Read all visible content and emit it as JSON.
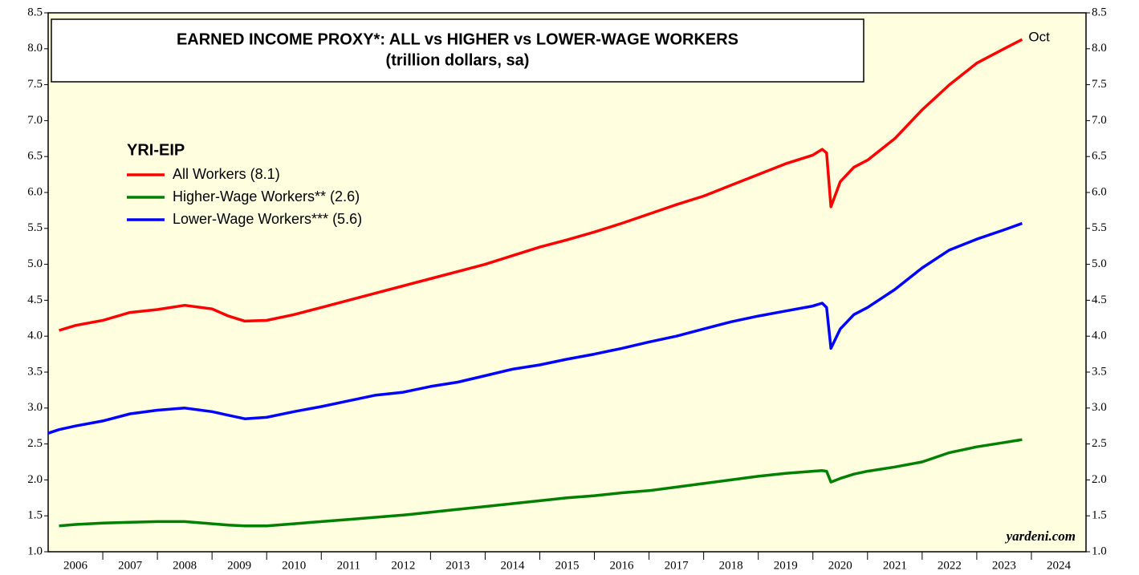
{
  "chart_data": {
    "type": "line",
    "title": "EARNED INCOME PROXY*: ALL vs HIGHER vs LOWER-WAGE WORKERS",
    "subtitle": "(trillion dollars, sa)",
    "legend_title": "YRI-EIP",
    "annotation": "Oct",
    "source": "yardeni.com",
    "x": [
      2006,
      2006.2,
      2006.5,
      2007,
      2007.5,
      2008,
      2008.5,
      2009,
      2009.3,
      2009.6,
      2010,
      2010.5,
      2011,
      2011.5,
      2012,
      2012.5,
      2013,
      2013.5,
      2014,
      2014.5,
      2015,
      2015.5,
      2016,
      2016.5,
      2017,
      2017.5,
      2018,
      2018.5,
      2019,
      2019.5,
      2020,
      2020.17,
      2020.25,
      2020.33,
      2020.5,
      2020.75,
      2021,
      2021.5,
      2022,
      2022.5,
      2023,
      2023.5,
      2023.83
    ],
    "series": [
      {
        "name": "All Workers (8.1)",
        "color": "#ff0000",
        "values": [
          null,
          4.08,
          4.15,
          4.22,
          4.33,
          4.37,
          4.43,
          4.38,
          4.28,
          4.21,
          4.22,
          4.3,
          4.4,
          4.5,
          4.6,
          4.7,
          4.8,
          4.9,
          5.0,
          5.12,
          5.24,
          5.34,
          5.45,
          5.57,
          5.7,
          5.83,
          5.95,
          6.1,
          6.25,
          6.4,
          6.52,
          6.6,
          6.55,
          5.8,
          6.15,
          6.35,
          6.45,
          6.75,
          7.15,
          7.5,
          7.8,
          8.0,
          8.13
        ]
      },
      {
        "name": "Higher-Wage Workers** (2.6)",
        "color": "#008000",
        "values": [
          null,
          1.36,
          1.38,
          1.4,
          1.41,
          1.42,
          1.42,
          1.39,
          1.37,
          1.36,
          1.36,
          1.39,
          1.42,
          1.45,
          1.48,
          1.51,
          1.55,
          1.59,
          1.63,
          1.67,
          1.71,
          1.75,
          1.78,
          1.82,
          1.85,
          1.9,
          1.95,
          2.0,
          2.05,
          2.09,
          2.12,
          2.13,
          2.12,
          1.97,
          2.02,
          2.08,
          2.12,
          2.18,
          2.25,
          2.38,
          2.46,
          2.52,
          2.56
        ]
      },
      {
        "name": "Lower-Wage Workers*** (5.6)",
        "color": "#0000ff",
        "values": [
          2.65,
          2.7,
          2.75,
          2.82,
          2.92,
          2.97,
          3.0,
          2.95,
          2.9,
          2.85,
          2.87,
          2.95,
          3.02,
          3.1,
          3.18,
          3.22,
          3.3,
          3.36,
          3.45,
          3.54,
          3.6,
          3.68,
          3.75,
          3.83,
          3.92,
          4.0,
          4.1,
          4.2,
          4.28,
          4.35,
          4.42,
          4.46,
          4.4,
          3.83,
          4.1,
          4.3,
          4.4,
          4.65,
          4.95,
          5.2,
          5.35,
          5.48,
          5.57
        ]
      }
    ],
    "xlim": [
      2006,
      2025
    ],
    "xticks": [
      {
        "value": 2006.5,
        "label": "2006"
      },
      {
        "value": 2007.5,
        "label": "2007"
      },
      {
        "value": 2008.5,
        "label": "2008"
      },
      {
        "value": 2009.5,
        "label": "2009"
      },
      {
        "value": 2010.5,
        "label": "2010"
      },
      {
        "value": 2011.5,
        "label": "2011"
      },
      {
        "value": 2012.5,
        "label": "2012"
      },
      {
        "value": 2013.5,
        "label": "2013"
      },
      {
        "value": 2014.5,
        "label": "2014"
      },
      {
        "value": 2015.5,
        "label": "2015"
      },
      {
        "value": 2016.5,
        "label": "2016"
      },
      {
        "value": 2017.5,
        "label": "2017"
      },
      {
        "value": 2018.5,
        "label": "2018"
      },
      {
        "value": 2019.5,
        "label": "2019"
      },
      {
        "value": 2020.5,
        "label": "2020"
      },
      {
        "value": 2021.5,
        "label": "2021"
      },
      {
        "value": 2022.5,
        "label": "2022"
      },
      {
        "value": 2023.5,
        "label": "2023"
      },
      {
        "value": 2024.5,
        "label": "2024"
      }
    ],
    "ylim": [
      1,
      8.5
    ],
    "yticks": [
      {
        "value": 1,
        "label": "1.0"
      },
      1.5,
      {
        "value": 2,
        "label": "2.0"
      },
      2.5,
      {
        "value": 3,
        "label": "3.0"
      },
      3.5,
      {
        "value": 4,
        "label": "4.0"
      },
      4.5,
      {
        "value": 5,
        "label": "5.0"
      },
      5.5,
      {
        "value": 6,
        "label": "6.0"
      },
      6.5,
      {
        "value": 7,
        "label": "7.0"
      },
      7.5,
      {
        "value": 8,
        "label": "8.0"
      },
      {
        "value": 8.5,
        "label": "8.5"
      }
    ],
    "legend": "upper left",
    "grid": false
  }
}
